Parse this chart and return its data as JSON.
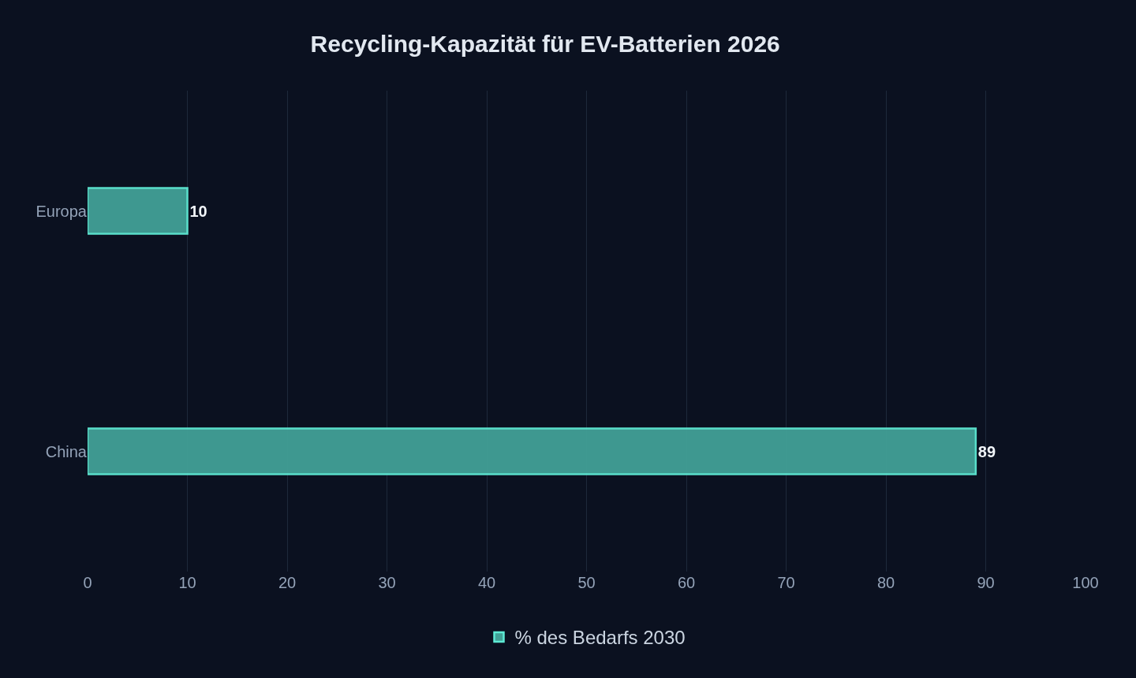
{
  "chart_data": {
    "type": "bar",
    "orientation": "horizontal",
    "title": "Recycling-Kapazität für EV-Batterien 2026",
    "categories": [
      "Europa",
      "China"
    ],
    "series": [
      {
        "name": "% des Bedarfs 2030",
        "color": "#41a096",
        "values": [
          10,
          89
        ]
      }
    ],
    "xlim": [
      0,
      100
    ],
    "xticks": [
      0,
      10,
      20,
      30,
      40,
      50,
      60,
      70,
      80,
      90,
      100
    ],
    "grid": "x",
    "legend": "bottom",
    "data_labels": true
  }
}
